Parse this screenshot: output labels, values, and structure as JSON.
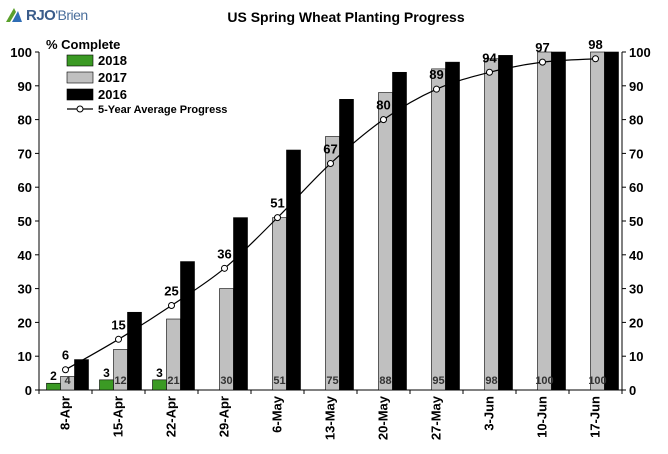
{
  "brand": {
    "name_prefix": "RJO",
    "name_suffix": "'Brien",
    "logo_icon": "rjo-brien-leaf-logo-icon"
  },
  "chart_data": {
    "type": "bar",
    "title": "US Spring Wheat Planting Progress",
    "ylabel": "% Complete",
    "xlabel": "",
    "categories": [
      "8-Apr",
      "15-Apr",
      "22-Apr",
      "29-Apr",
      "6-May",
      "13-May",
      "20-May",
      "27-May",
      "3-Jun",
      "10-Jun",
      "17-Jun"
    ],
    "ylim": [
      0,
      100
    ],
    "yticks": [
      0,
      10,
      20,
      30,
      40,
      50,
      60,
      70,
      80,
      90,
      100
    ],
    "grid": false,
    "legend_position": "top-left",
    "series": [
      {
        "name": "2018",
        "type": "bar",
        "color": "#3b9a24",
        "values": [
          2,
          3,
          3,
          null,
          null,
          null,
          null,
          null,
          null,
          null,
          null
        ],
        "labels": [
          "2",
          "3",
          "3",
          "",
          "",
          "",
          "",
          "",
          "",
          "",
          ""
        ]
      },
      {
        "name": "2017",
        "type": "bar",
        "color": "#c0c0c0",
        "values": [
          4,
          12,
          21,
          30,
          51,
          75,
          88,
          95,
          98,
          100,
          100
        ],
        "labels": [
          "4",
          "12",
          "21",
          "30",
          "51",
          "75",
          "88",
          "95",
          "98",
          "100",
          "100"
        ]
      },
      {
        "name": "2016",
        "type": "bar",
        "color": "#000000",
        "values": [
          9,
          23,
          38,
          51,
          71,
          86,
          94,
          97,
          99,
          100,
          100
        ],
        "labels": [
          "",
          "",
          "",
          "",
          "",
          "",
          "",
          "",
          "",
          "",
          ""
        ]
      },
      {
        "name": "5-Year Average Progress",
        "type": "line",
        "color": "#000000",
        "values": [
          6,
          15,
          25,
          36,
          51,
          67,
          80,
          89,
          94,
          97,
          98
        ],
        "labels": [
          "6",
          "15",
          "25",
          "36",
          "51",
          "67",
          "80",
          "89",
          "94",
          "97",
          "98"
        ]
      }
    ]
  }
}
